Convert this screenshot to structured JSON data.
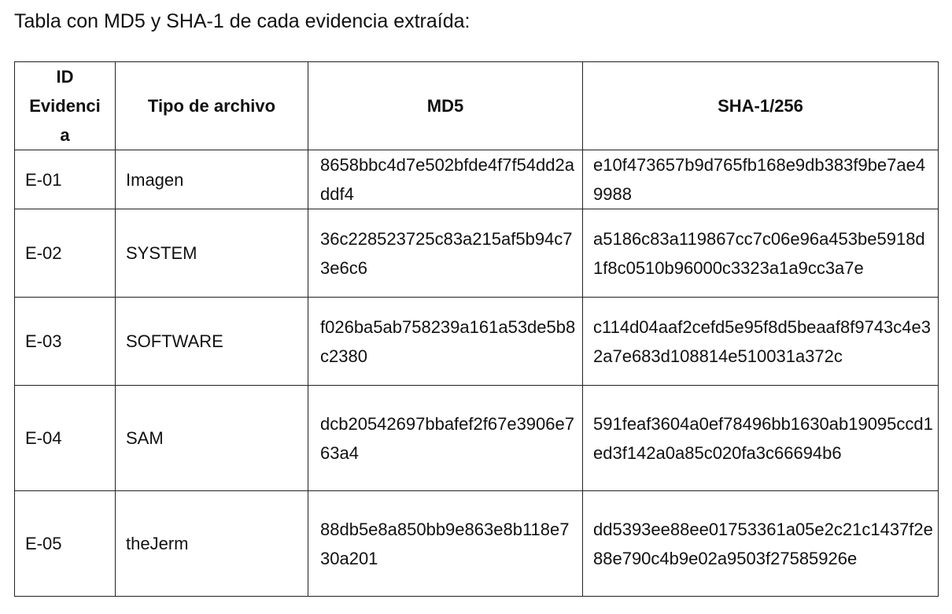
{
  "caption": "Tabla con MD5 y SHA-1 de cada evidencia extraída:",
  "table": {
    "headers": {
      "id_line1": "ID",
      "id_line2": "Evidenci",
      "id_line3": "a",
      "type": "Tipo de archivo",
      "md5": "MD5",
      "sha": "SHA-1/256"
    },
    "rows": [
      {
        "id": "E-01",
        "type": "Imagen",
        "md5": "8658bbc4d7e502bfde4f7f54dd2addf4",
        "sha": "e10f473657b9d765fb168e9db383f9be7ae49988"
      },
      {
        "id": "E-02",
        "type": "SYSTEM",
        "md5": "36c228523725c83a215af5b94c73e6c6",
        "sha": "a5186c83a119867cc7c06e96a453be5918d1f8c0510b96000c3323a1a9cc3a7e"
      },
      {
        "id": "E-03",
        "type": "SOFTWARE",
        "md5": "f026ba5ab758239a161a53de5b8c2380",
        "sha": "c114d04aaf2cefd5e95f8d5beaaf8f9743c4e32a7e683d108814e510031a372c"
      },
      {
        "id": "E-04",
        "type": "SAM",
        "md5": "dcb20542697bbafef2f67e3906e763a4",
        "sha": "591feaf3604a0ef78496bb1630ab19095ccd1ed3f142a0a85c020fa3c66694b6"
      },
      {
        "id": "E-05",
        "type": "theJerm",
        "md5": "88db5e8a850bb9e863e8b118e730a201",
        "sha": "dd5393ee88ee01753361a05e2c21c1437f2e88e790c4b9e02a9503f27585926e"
      }
    ]
  }
}
